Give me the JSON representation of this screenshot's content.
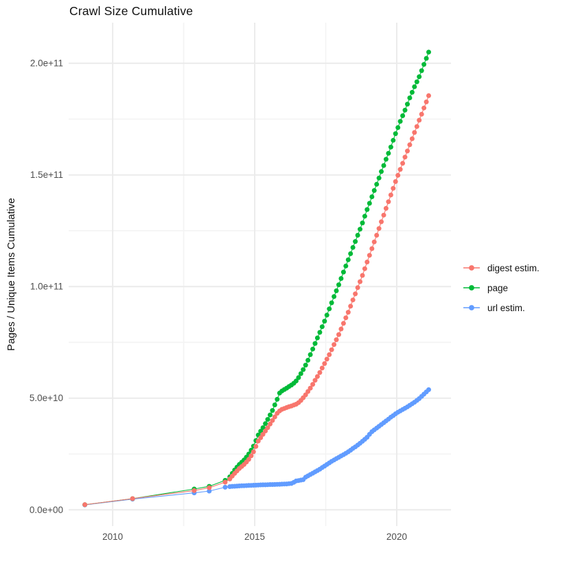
{
  "title": "Crawl Size Cumulative",
  "y_axis": {
    "label": "Pages / Unique Items Cumulative",
    "ticks": [
      "0.0e+00",
      "5.0e+10",
      "1.0e+11",
      "1.5e+11",
      "2.0e+11"
    ],
    "tick_values_billions": [
      0,
      50,
      100,
      150,
      200
    ],
    "minor_gridlines_billions": [
      25,
      75,
      125,
      175
    ]
  },
  "x_axis": {
    "label": "",
    "ticks": [
      "2010",
      "2015",
      "2020"
    ],
    "tick_values": [
      2010,
      2015,
      2020
    ],
    "minor_gridlines": [
      2012.5,
      2017.5
    ]
  },
  "legend": {
    "position": "right",
    "items": [
      {
        "label": "digest estim.",
        "color": "#F8766D"
      },
      {
        "label": "page",
        "color": "#00BA38"
      },
      {
        "label": "url estim.",
        "color": "#619CFF"
      }
    ]
  },
  "colors": {
    "background": "#ffffff",
    "major_gridline": "#ebebeb",
    "minor_gridline": "#f3f3f3",
    "tick_label": "#4d4d4d",
    "digest": "#F8766D",
    "page": "#00BA38",
    "url": "#619CFF"
  },
  "chart_data": {
    "type": "scatter",
    "title": "Crawl Size Cumulative",
    "xlabel": "",
    "ylabel": "Pages / Unique Items Cumulative",
    "x_unit": "year",
    "value_unit": "items (values below in billions, 1e9)",
    "xlim": [
      2008.45,
      2021.91
    ],
    "ylim_billions": [
      -7.3,
      218.2
    ],
    "grid": true,
    "legend_position": "right",
    "marker": "point-with-line",
    "series": [
      {
        "name": "digest estim.",
        "color": "#F8766D",
        "points": [
          [
            2009.02,
            2.3
          ],
          [
            2010.7,
            5.0
          ],
          [
            2012.87,
            8.6
          ],
          [
            2013.4,
            9.9
          ],
          [
            2013.96,
            12.4
          ],
          [
            2014.125,
            13.8
          ],
          [
            2014.208,
            15.1
          ],
          [
            2014.292,
            16.3
          ],
          [
            2014.375,
            17.4
          ],
          [
            2014.458,
            18.5
          ],
          [
            2014.542,
            19.4
          ],
          [
            2014.625,
            20.3
          ],
          [
            2014.708,
            21.4
          ],
          [
            2014.792,
            22.6
          ],
          [
            2014.875,
            24.2
          ],
          [
            2014.958,
            26.0
          ],
          [
            2015.042,
            28.4
          ],
          [
            2015.125,
            30.8
          ],
          [
            2015.208,
            32.3
          ],
          [
            2015.292,
            33.8
          ],
          [
            2015.375,
            35.3
          ],
          [
            2015.458,
            36.8
          ],
          [
            2015.542,
            38.4
          ],
          [
            2015.625,
            40.0
          ],
          [
            2015.708,
            41.6
          ],
          [
            2015.792,
            43.2
          ],
          [
            2015.875,
            44.3
          ],
          [
            2015.958,
            45.0
          ],
          [
            2016.042,
            45.4
          ],
          [
            2016.125,
            45.8
          ],
          [
            2016.208,
            46.2
          ],
          [
            2016.292,
            46.5
          ],
          [
            2016.375,
            46.9
          ],
          [
            2016.458,
            47.3
          ],
          [
            2016.542,
            48.0
          ],
          [
            2016.625,
            49.0
          ],
          [
            2016.708,
            50.2
          ],
          [
            2016.792,
            51.5
          ],
          [
            2016.875,
            53.0
          ],
          [
            2016.958,
            54.5
          ],
          [
            2017.042,
            56.2
          ],
          [
            2017.125,
            58.0
          ],
          [
            2017.208,
            59.7
          ],
          [
            2017.292,
            61.5
          ],
          [
            2017.375,
            63.5
          ],
          [
            2017.458,
            65.5
          ],
          [
            2017.542,
            67.5
          ],
          [
            2017.625,
            69.5
          ],
          [
            2017.708,
            71.7
          ],
          [
            2017.792,
            74.0
          ],
          [
            2017.875,
            76.2
          ],
          [
            2017.958,
            78.5
          ],
          [
            2018.042,
            81.0
          ],
          [
            2018.125,
            83.5
          ],
          [
            2018.208,
            86.0
          ],
          [
            2018.292,
            88.5
          ],
          [
            2018.375,
            91.2
          ],
          [
            2018.458,
            94.0
          ],
          [
            2018.542,
            96.7
          ],
          [
            2018.625,
            99.5
          ],
          [
            2018.708,
            102.2
          ],
          [
            2018.792,
            105.0
          ],
          [
            2018.875,
            108.0
          ],
          [
            2018.958,
            111.0
          ],
          [
            2019.042,
            114.0
          ],
          [
            2019.125,
            117.0
          ],
          [
            2019.208,
            120.0
          ],
          [
            2019.292,
            123.0
          ],
          [
            2019.375,
            126.0
          ],
          [
            2019.458,
            129.0
          ],
          [
            2019.542,
            132.0
          ],
          [
            2019.625,
            135.0
          ],
          [
            2019.708,
            138.0
          ],
          [
            2019.792,
            141.0
          ],
          [
            2019.875,
            144.0
          ],
          [
            2019.958,
            147.0
          ],
          [
            2020.042,
            149.8
          ],
          [
            2020.125,
            152.5
          ],
          [
            2020.208,
            155.2
          ],
          [
            2020.292,
            158.0
          ],
          [
            2020.375,
            160.7
          ],
          [
            2020.458,
            163.5
          ],
          [
            2020.542,
            166.2
          ],
          [
            2020.625,
            169.0
          ],
          [
            2020.708,
            171.7
          ],
          [
            2020.792,
            174.5
          ],
          [
            2020.875,
            177.2
          ],
          [
            2020.958,
            180.0
          ],
          [
            2021.042,
            182.7
          ],
          [
            2021.125,
            185.5
          ]
        ]
      },
      {
        "name": "page",
        "color": "#00BA38",
        "points": [
          [
            2009.02,
            2.3
          ],
          [
            2010.7,
            5.0
          ],
          [
            2012.87,
            9.3
          ],
          [
            2013.4,
            10.5
          ],
          [
            2013.96,
            13.2
          ],
          [
            2014.125,
            14.8
          ],
          [
            2014.208,
            16.3
          ],
          [
            2014.292,
            17.8
          ],
          [
            2014.375,
            19.1
          ],
          [
            2014.458,
            20.3
          ],
          [
            2014.542,
            21.3
          ],
          [
            2014.625,
            22.3
          ],
          [
            2014.708,
            23.6
          ],
          [
            2014.792,
            25.0
          ],
          [
            2014.875,
            26.7
          ],
          [
            2014.958,
            28.5
          ],
          [
            2015.042,
            31.0
          ],
          [
            2015.125,
            33.5
          ],
          [
            2015.208,
            35.2
          ],
          [
            2015.292,
            36.8
          ],
          [
            2015.375,
            38.6
          ],
          [
            2015.458,
            40.5
          ],
          [
            2015.542,
            42.5
          ],
          [
            2015.625,
            44.5
          ],
          [
            2015.708,
            47.0
          ],
          [
            2015.792,
            49.5
          ],
          [
            2015.875,
            52.3
          ],
          [
            2015.958,
            53.2
          ],
          [
            2016.042,
            53.9
          ],
          [
            2016.125,
            54.5
          ],
          [
            2016.208,
            55.2
          ],
          [
            2016.292,
            55.9
          ],
          [
            2016.375,
            56.7
          ],
          [
            2016.458,
            57.7
          ],
          [
            2016.542,
            59.2
          ],
          [
            2016.625,
            61.0
          ],
          [
            2016.708,
            62.8
          ],
          [
            2016.792,
            64.8
          ],
          [
            2016.875,
            67.0
          ],
          [
            2016.958,
            69.5
          ],
          [
            2017.042,
            72.0
          ],
          [
            2017.125,
            74.5
          ],
          [
            2017.208,
            77.0
          ],
          [
            2017.292,
            79.5
          ],
          [
            2017.375,
            82.0
          ],
          [
            2017.458,
            84.5
          ],
          [
            2017.542,
            87.2
          ],
          [
            2017.625,
            90.0
          ],
          [
            2017.708,
            92.7
          ],
          [
            2017.792,
            95.5
          ],
          [
            2017.875,
            98.1
          ],
          [
            2017.958,
            100.8
          ],
          [
            2018.042,
            103.6
          ],
          [
            2018.125,
            106.5
          ],
          [
            2018.208,
            109.2
          ],
          [
            2018.292,
            112.0
          ],
          [
            2018.375,
            114.7
          ],
          [
            2018.458,
            117.5
          ],
          [
            2018.542,
            120.2
          ],
          [
            2018.625,
            123.0
          ],
          [
            2018.708,
            125.7
          ],
          [
            2018.792,
            128.5
          ],
          [
            2018.875,
            131.5
          ],
          [
            2018.958,
            134.5
          ],
          [
            2019.042,
            137.3
          ],
          [
            2019.125,
            140.2
          ],
          [
            2019.208,
            143.0
          ],
          [
            2019.292,
            145.8
          ],
          [
            2019.375,
            148.6
          ],
          [
            2019.458,
            151.5
          ],
          [
            2019.542,
            154.2
          ],
          [
            2019.625,
            157.0
          ],
          [
            2019.708,
            159.7
          ],
          [
            2019.792,
            162.5
          ],
          [
            2019.875,
            165.5
          ],
          [
            2019.958,
            168.5
          ],
          [
            2020.042,
            171.2
          ],
          [
            2020.125,
            174.0
          ],
          [
            2020.208,
            176.5
          ],
          [
            2020.292,
            179.0
          ],
          [
            2020.375,
            181.7
          ],
          [
            2020.458,
            184.5
          ],
          [
            2020.542,
            187.0
          ],
          [
            2020.625,
            189.5
          ],
          [
            2020.708,
            191.7
          ],
          [
            2020.792,
            194.0
          ],
          [
            2020.875,
            196.7
          ],
          [
            2020.958,
            199.5
          ],
          [
            2021.042,
            202.2
          ],
          [
            2021.125,
            205.0
          ]
        ]
      },
      {
        "name": "url estim.",
        "color": "#619CFF",
        "points": [
          [
            2009.02,
            2.2
          ],
          [
            2010.7,
            4.8
          ],
          [
            2012.87,
            7.6
          ],
          [
            2013.4,
            8.4
          ],
          [
            2013.96,
            10.1
          ],
          [
            2014.125,
            10.4
          ],
          [
            2014.208,
            10.5
          ],
          [
            2014.292,
            10.55
          ],
          [
            2014.375,
            10.6
          ],
          [
            2014.458,
            10.7
          ],
          [
            2014.542,
            10.75
          ],
          [
            2014.625,
            10.8
          ],
          [
            2014.708,
            10.85
          ],
          [
            2014.792,
            10.9
          ],
          [
            2014.875,
            10.95
          ],
          [
            2014.958,
            11.0
          ],
          [
            2015.042,
            11.05
          ],
          [
            2015.125,
            11.1
          ],
          [
            2015.208,
            11.15
          ],
          [
            2015.292,
            11.2
          ],
          [
            2015.375,
            11.2
          ],
          [
            2015.458,
            11.25
          ],
          [
            2015.542,
            11.3
          ],
          [
            2015.625,
            11.3
          ],
          [
            2015.708,
            11.35
          ],
          [
            2015.792,
            11.4
          ],
          [
            2015.875,
            11.45
          ],
          [
            2015.958,
            11.5
          ],
          [
            2016.042,
            11.55
          ],
          [
            2016.125,
            11.6
          ],
          [
            2016.208,
            11.7
          ],
          [
            2016.292,
            11.8
          ],
          [
            2016.375,
            12.3
          ],
          [
            2016.458,
            12.9
          ],
          [
            2016.542,
            13.1
          ],
          [
            2016.625,
            13.3
          ],
          [
            2016.708,
            13.5
          ],
          [
            2016.792,
            14.6
          ],
          [
            2016.875,
            15.2
          ],
          [
            2016.958,
            15.8
          ],
          [
            2017.042,
            16.4
          ],
          [
            2017.125,
            17.0
          ],
          [
            2017.208,
            17.6
          ],
          [
            2017.292,
            18.2
          ],
          [
            2017.375,
            18.9
          ],
          [
            2017.458,
            19.6
          ],
          [
            2017.542,
            20.3
          ],
          [
            2017.625,
            21.0
          ],
          [
            2017.708,
            21.7
          ],
          [
            2017.792,
            22.3
          ],
          [
            2017.875,
            22.9
          ],
          [
            2017.958,
            23.5
          ],
          [
            2018.042,
            24.1
          ],
          [
            2018.125,
            24.7
          ],
          [
            2018.208,
            25.3
          ],
          [
            2018.292,
            26.0
          ],
          [
            2018.375,
            26.7
          ],
          [
            2018.458,
            27.5
          ],
          [
            2018.542,
            28.2
          ],
          [
            2018.625,
            29.0
          ],
          [
            2018.708,
            29.8
          ],
          [
            2018.792,
            30.7
          ],
          [
            2018.875,
            31.6
          ],
          [
            2018.958,
            32.5
          ],
          [
            2019.042,
            33.8
          ],
          [
            2019.125,
            35.0
          ],
          [
            2019.208,
            35.8
          ],
          [
            2019.292,
            36.6
          ],
          [
            2019.375,
            37.4
          ],
          [
            2019.458,
            38.2
          ],
          [
            2019.542,
            39.0
          ],
          [
            2019.625,
            39.8
          ],
          [
            2019.708,
            40.6
          ],
          [
            2019.792,
            41.5
          ],
          [
            2019.875,
            42.2
          ],
          [
            2019.958,
            43.0
          ],
          [
            2020.042,
            43.7
          ],
          [
            2020.125,
            44.3
          ],
          [
            2020.208,
            44.9
          ],
          [
            2020.292,
            45.5
          ],
          [
            2020.375,
            46.1
          ],
          [
            2020.458,
            46.8
          ],
          [
            2020.542,
            47.5
          ],
          [
            2020.625,
            48.2
          ],
          [
            2020.708,
            49.0
          ],
          [
            2020.792,
            49.8
          ],
          [
            2020.875,
            50.8
          ],
          [
            2020.958,
            51.8
          ],
          [
            2021.042,
            52.8
          ],
          [
            2021.125,
            53.8
          ]
        ]
      }
    ]
  }
}
